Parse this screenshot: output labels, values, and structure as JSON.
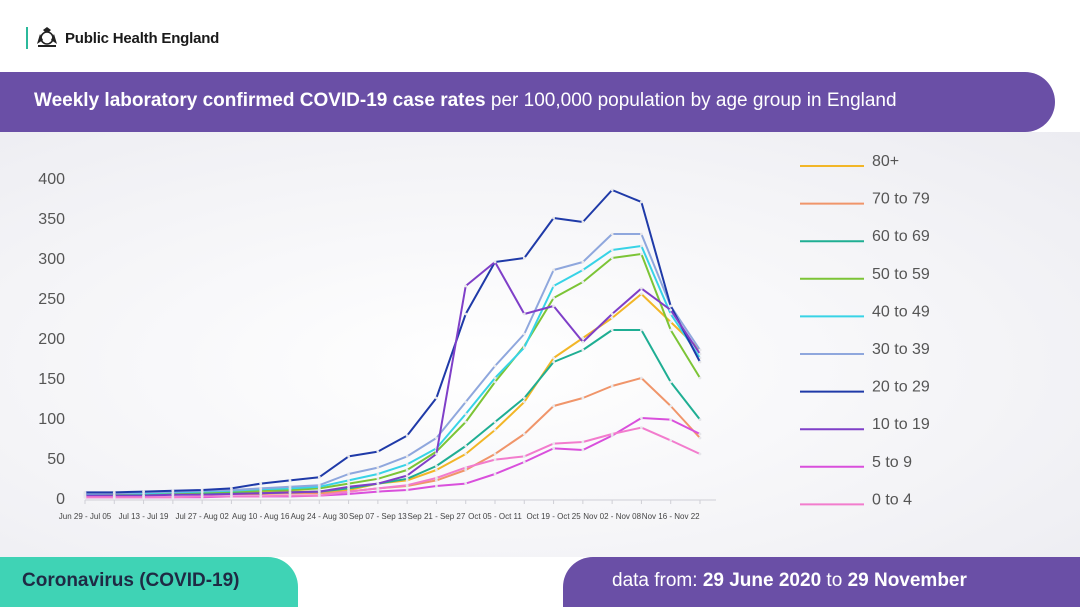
{
  "header": {
    "org_name": "Public Health England",
    "title_bold": "Weekly laboratory confirmed COVID-19 case rates",
    "title_rest": "per 100,000 population by age group in England"
  },
  "footer": {
    "left_label": "Coronavirus (COVID-19)",
    "range_prefix": "data from:",
    "range_start": "29 June 2020",
    "range_mid": "to",
    "range_end": "29 November"
  },
  "colors": {
    "purple": "#6a4fa6",
    "teal": "#3fd3b5"
  },
  "chart_data": {
    "type": "line",
    "title": "Weekly laboratory confirmed COVID-19 case rates per 100,000 population by age group in England",
    "xlabel": "",
    "ylabel": "",
    "ylim": [
      0,
      400
    ],
    "yticks": [
      "0",
      "50",
      "100",
      "150",
      "200",
      "250",
      "300",
      "350",
      "400"
    ],
    "x_tick_labels": [
      "Jun 29 - Jul 05",
      "Jul 13 - Jul 19",
      "Jul 27 - Aug 02",
      "Aug 10 - Aug 16",
      "Aug 24 - Aug 30",
      "Sep 07 - Sep 13",
      "Sep 21 - Sep 27",
      "Oct 05 - Oct 11",
      "Oct 19 - Oct 25",
      "Nov 02 - Nov 08",
      "Nov 16 - Nov 22"
    ],
    "legend_position": "right",
    "series": [
      {
        "name": "80+",
        "color": "#f2b627",
        "values": [
          5,
          5,
          5,
          6,
          6,
          7,
          7,
          8,
          8,
          10,
          18,
          22,
          35,
          55,
          85,
          120,
          175,
          200,
          225,
          255,
          220,
          185
        ]
      },
      {
        "name": "70 to 79",
        "color": "#f0956a",
        "values": [
          4,
          4,
          4,
          4,
          5,
          5,
          5,
          6,
          6,
          8,
          12,
          15,
          22,
          35,
          55,
          80,
          115,
          125,
          140,
          150,
          115,
          75
        ]
      },
      {
        "name": "60 to 69",
        "color": "#1fae93",
        "values": [
          4,
          4,
          5,
          5,
          5,
          6,
          6,
          7,
          8,
          12,
          18,
          24,
          40,
          65,
          95,
          125,
          170,
          185,
          210,
          210,
          145,
          98
        ]
      },
      {
        "name": "50 to 59",
        "color": "#7cc436",
        "values": [
          5,
          5,
          6,
          6,
          7,
          8,
          9,
          10,
          12,
          18,
          24,
          35,
          58,
          95,
          145,
          190,
          250,
          270,
          300,
          305,
          210,
          150
        ]
      },
      {
        "name": "40 to 49",
        "color": "#38d3e6",
        "values": [
          5,
          6,
          6,
          7,
          8,
          9,
          11,
          12,
          14,
          22,
          30,
          42,
          62,
          105,
          150,
          188,
          265,
          285,
          310,
          315,
          230,
          175
        ]
      },
      {
        "name": "30 to 39",
        "color": "#8fa7dd",
        "values": [
          6,
          6,
          7,
          8,
          9,
          10,
          12,
          14,
          16,
          30,
          38,
          52,
          75,
          120,
          165,
          205,
          285,
          295,
          330,
          330,
          240,
          185
        ]
      },
      {
        "name": "20 to 29",
        "color": "#1f3aa8",
        "values": [
          7,
          7,
          8,
          9,
          10,
          12,
          18,
          22,
          26,
          52,
          58,
          78,
          125,
          230,
          295,
          300,
          350,
          345,
          385,
          370,
          240,
          170
        ]
      },
      {
        "name": "10 to 19",
        "color": "#7f3fc8",
        "values": [
          3,
          3,
          3,
          4,
          4,
          5,
          6,
          7,
          8,
          14,
          18,
          28,
          55,
          265,
          295,
          230,
          240,
          195,
          230,
          262,
          235,
          180
        ]
      },
      {
        "name": "5 to 9",
        "color": "#d94fdc",
        "values": [
          1,
          1,
          1,
          1,
          1,
          2,
          2,
          2,
          3,
          5,
          8,
          10,
          15,
          18,
          30,
          45,
          62,
          60,
          78,
          100,
          98,
          80
        ]
      },
      {
        "name": "0 to 4",
        "color": "#f27ccd",
        "values": [
          1,
          1,
          1,
          1,
          2,
          2,
          2,
          3,
          3,
          8,
          12,
          16,
          25,
          38,
          48,
          52,
          68,
          70,
          80,
          88,
          72,
          55
        ]
      }
    ]
  }
}
